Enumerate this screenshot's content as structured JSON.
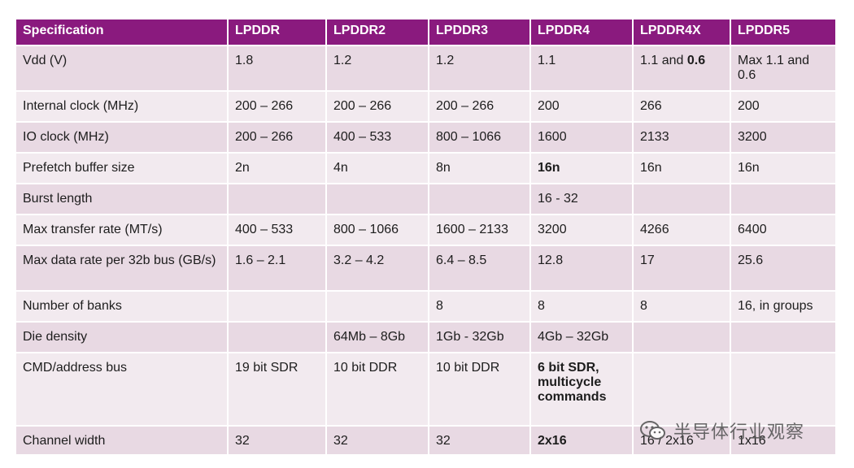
{
  "table": {
    "headers": [
      "Specification",
      "LPDDR",
      "LPDDR2",
      "LPDDR3",
      "LPDDR4",
      "LPDDR4X",
      "LPDDR5"
    ],
    "rows": [
      {
        "cells": [
          "Vdd (V)",
          "1.8",
          "1.2",
          "1.2",
          "1.1",
          "1.1 and",
          "Max 1.1 and 0.6"
        ],
        "extra_bold": "0.6"
      },
      {
        "cells": [
          "Internal clock (MHz)",
          "200 – 266",
          "200 – 266",
          "200 – 266",
          "200",
          "266",
          "200"
        ]
      },
      {
        "cells": [
          "IO clock (MHz)",
          "200 – 266",
          "400 – 533",
          "800 – 1066",
          "1600",
          "2133",
          "3200"
        ]
      },
      {
        "cells": [
          "Prefetch buffer size",
          "2n",
          "4n",
          "8n",
          "16n",
          "16n",
          "16n"
        ]
      },
      {
        "cells": [
          "Burst length",
          "",
          "",
          "",
          "16 - 32",
          "",
          ""
        ]
      },
      {
        "cells": [
          "Max transfer rate (MT/s)",
          "400 – 533",
          "800 – 1066",
          "1600 – 2133",
          "3200",
          "4266",
          "6400"
        ]
      },
      {
        "cells": [
          "Max data rate per 32b bus (GB/s)",
          "1.6 – 2.1",
          "3.2 – 4.2",
          "6.4 – 8.5",
          "12.8",
          "17",
          "25.6"
        ]
      },
      {
        "cells": [
          "Number of banks",
          "",
          "",
          "8",
          "8",
          "8",
          "16, in groups"
        ]
      },
      {
        "cells": [
          "Die density",
          "",
          "64Mb – 8Gb",
          "1Gb - 32Gb",
          "4Gb – 32Gb",
          "",
          ""
        ]
      },
      {
        "cells": [
          "CMD/address bus",
          "19 bit SDR",
          "10 bit DDR",
          "10 bit DDR",
          "6 bit SDR, multicycle commands",
          "",
          ""
        ]
      },
      {
        "cells": [
          "Channel width",
          "32",
          "32",
          "32",
          "2x16",
          "16 / 2x16",
          "1x16"
        ]
      }
    ]
  },
  "watermark": {
    "text": "半导体行业观察",
    "icon": "wechat-icon"
  }
}
